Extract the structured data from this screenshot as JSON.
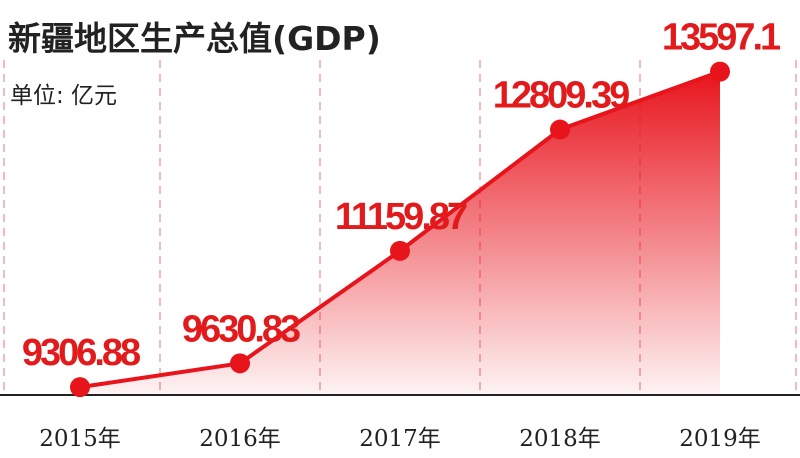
{
  "chart_data": {
    "type": "area",
    "title": "新疆地区生产总值(GDP)",
    "subtitle": "单位: 亿元",
    "categories": [
      "2015年",
      "2016年",
      "2017年",
      "2018年",
      "2019年"
    ],
    "values": [
      9306.88,
      9630.83,
      11159.87,
      12809.39,
      13597.1
    ],
    "color": "#e8141c",
    "ylim": [
      9200,
      14000
    ]
  }
}
